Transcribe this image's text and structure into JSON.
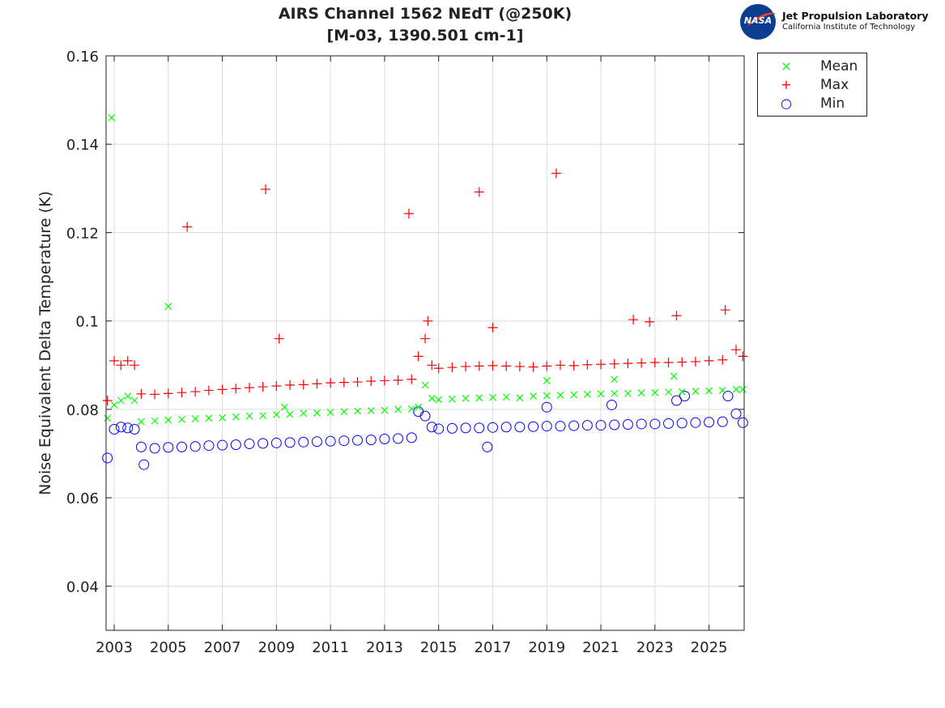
{
  "header": {
    "title_line1": "AIRS Channel 1562 NEdT (@250K)",
    "title_line2": "[M-03, 1390.501 cm-1]",
    "logo": {
      "emblem": "NASA",
      "line1": "Jet Propulsion Laboratory",
      "line2": "California Institute of Technology"
    }
  },
  "chart_data": {
    "type": "scatter",
    "title": "AIRS Channel 1562 NEdT (@250K) [M-03, 1390.501 cm-1]",
    "xlabel": "",
    "ylabel": "Noise Equivalent Delta Temperature (K)",
    "xlim": [
      2002.7,
      2026.3
    ],
    "ylim": [
      0.03,
      0.16
    ],
    "xticks": [
      2003,
      2005,
      2007,
      2009,
      2011,
      2013,
      2015,
      2017,
      2019,
      2021,
      2023,
      2025
    ],
    "xtick_labels": [
      "2003",
      "2005",
      "2007",
      "2009",
      "2011",
      "2013",
      "2015",
      "2017",
      "2019",
      "2021",
      "2023",
      "2025"
    ],
    "yticks": [
      0.04,
      0.06,
      0.08,
      0.1,
      0.12,
      0.14,
      0.16
    ],
    "ytick_labels": [
      "0.04",
      "0.06",
      "0.08",
      "0.1",
      "0.12",
      "0.14",
      "0.16"
    ],
    "grid": true,
    "legend_position": "outside-top-right",
    "x": [
      2002.75,
      2003.0,
      2003.25,
      2003.5,
      2003.75,
      2004.0,
      2004.5,
      2005.0,
      2005.5,
      2006.0,
      2006.5,
      2007.0,
      2007.5,
      2008.0,
      2008.5,
      2009.0,
      2009.5,
      2010.0,
      2010.5,
      2011.0,
      2011.5,
      2012.0,
      2012.5,
      2013.0,
      2013.5,
      2014.0,
      2014.25,
      2014.5,
      2014.75,
      2015.0,
      2015.5,
      2016.0,
      2016.5,
      2017.0,
      2017.5,
      2018.0,
      2018.5,
      2019.0,
      2019.5,
      2020.0,
      2020.5,
      2021.0,
      2021.5,
      2022.0,
      2022.5,
      2023.0,
      2023.5,
      2024.0,
      2024.5,
      2025.0,
      2025.5,
      2026.0,
      2026.25
    ],
    "series": [
      {
        "name": "Mean",
        "marker": "x",
        "color": "#00ff00",
        "values": [
          0.078,
          0.081,
          0.082,
          0.083,
          0.082,
          0.0772,
          0.0774,
          0.0776,
          0.0777,
          0.0779,
          0.078,
          0.0781,
          0.0783,
          0.0785,
          0.0786,
          0.0788,
          0.0789,
          0.0791,
          0.0792,
          0.0793,
          0.0795,
          0.0796,
          0.0797,
          0.0798,
          0.08,
          0.0801,
          0.0805,
          0.0855,
          0.0825,
          0.0822,
          0.0823,
          0.0825,
          0.0826,
          0.0827,
          0.0828,
          0.0826,
          0.083,
          0.0831,
          0.0832,
          0.0833,
          0.0834,
          0.0835,
          0.0836,
          0.0836,
          0.0837,
          0.0838,
          0.0839,
          0.084,
          0.0841,
          0.0842,
          0.0843,
          0.0845,
          0.0845
        ],
        "outliers": [
          [
            2002.9,
            0.146
          ],
          [
            2005.0,
            0.1033
          ],
          [
            2009.3,
            0.0805
          ],
          [
            2019.0,
            0.0865
          ],
          [
            2021.5,
            0.0868
          ],
          [
            2023.7,
            0.0875
          ]
        ]
      },
      {
        "name": "Max",
        "marker": "+",
        "color": "#ff0000",
        "values": [
          0.082,
          0.091,
          0.09,
          0.091,
          0.09,
          0.0835,
          0.0834,
          0.0836,
          0.0838,
          0.084,
          0.0843,
          0.0845,
          0.0847,
          0.0849,
          0.0851,
          0.0853,
          0.0855,
          0.0856,
          0.0858,
          0.086,
          0.0861,
          0.0862,
          0.0864,
          0.0865,
          0.0866,
          0.0868,
          0.092,
          0.096,
          0.09,
          0.0893,
          0.0895,
          0.0897,
          0.0898,
          0.0899,
          0.0898,
          0.0897,
          0.0896,
          0.0898,
          0.09,
          0.0899,
          0.0901,
          0.0902,
          0.0903,
          0.0904,
          0.0905,
          0.0906,
          0.0906,
          0.0907,
          0.0908,
          0.091,
          0.0912,
          0.0935,
          0.092
        ],
        "outliers": [
          [
            2005.7,
            0.1213
          ],
          [
            2008.6,
            0.1298
          ],
          [
            2009.1,
            0.096
          ],
          [
            2013.9,
            0.1243
          ],
          [
            2016.5,
            0.1292
          ],
          [
            2019.35,
            0.1334
          ],
          [
            2017.0,
            0.0985
          ],
          [
            2022.2,
            0.1003
          ],
          [
            2022.8,
            0.0998
          ],
          [
            2023.8,
            0.1012
          ],
          [
            2025.6,
            0.1025
          ],
          [
            2014.6,
            0.1
          ]
        ]
      },
      {
        "name": "Min",
        "marker": "o",
        "color": "#0000ff",
        "values": [
          0.069,
          0.0755,
          0.076,
          0.0758,
          0.0755,
          0.0715,
          0.0712,
          0.0714,
          0.0715,
          0.0716,
          0.0718,
          0.0719,
          0.072,
          0.0722,
          0.0723,
          0.0724,
          0.0725,
          0.0726,
          0.0727,
          0.0728,
          0.0729,
          0.073,
          0.0731,
          0.0733,
          0.0734,
          0.0736,
          0.0795,
          0.0785,
          0.076,
          0.0756,
          0.0757,
          0.0758,
          0.0758,
          0.0759,
          0.076,
          0.076,
          0.0761,
          0.0762,
          0.0762,
          0.0763,
          0.0764,
          0.0764,
          0.0765,
          0.0766,
          0.0767,
          0.0767,
          0.0768,
          0.0769,
          0.077,
          0.0771,
          0.0772,
          0.079,
          0.077
        ],
        "outliers": [
          [
            2004.1,
            0.0675
          ],
          [
            2016.8,
            0.0715
          ],
          [
            2019.0,
            0.0805
          ],
          [
            2021.4,
            0.081
          ],
          [
            2023.8,
            0.082
          ],
          [
            2024.1,
            0.083
          ],
          [
            2025.7,
            0.083
          ]
        ]
      }
    ]
  }
}
